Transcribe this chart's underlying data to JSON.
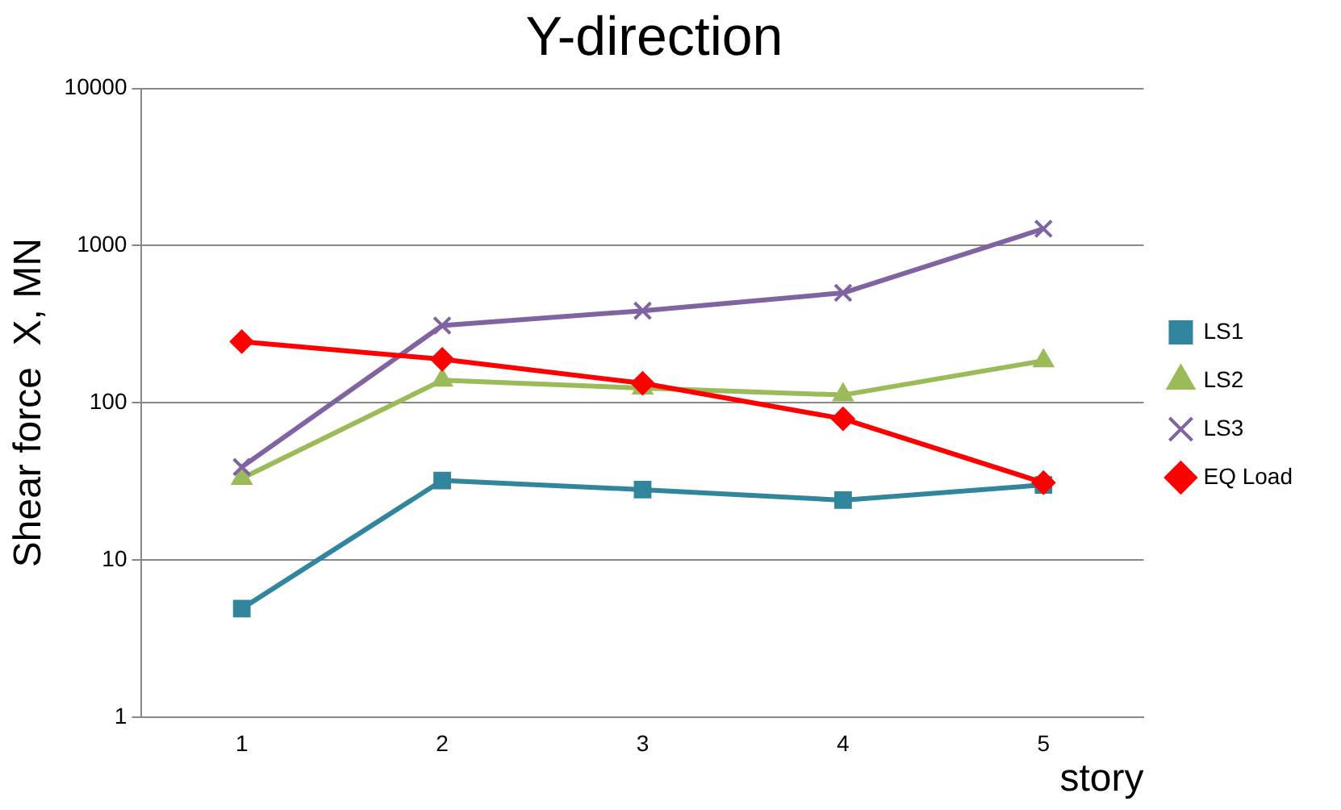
{
  "chart_data": {
    "type": "line",
    "title": "Y-direction",
    "xlabel": "story",
    "ylabel": "Shear force  X, MN",
    "categories": [
      "1",
      "2",
      "3",
      "4",
      "5"
    ],
    "series": [
      {
        "name": "LS1",
        "color": "#31859c",
        "marker": "square",
        "values": [
          4.9,
          32,
          28,
          24,
          30
        ]
      },
      {
        "name": "LS2",
        "color": "#9bbb59",
        "marker": "triangle",
        "values": [
          33,
          139,
          124,
          112,
          185
        ]
      },
      {
        "name": "LS3",
        "color": "#8064a2",
        "marker": "cross",
        "values": [
          39,
          310,
          385,
          500,
          1280
        ]
      },
      {
        "name": "EQ Load",
        "color": "#ff0000",
        "marker": "diamond",
        "values": [
          245,
          189,
          133,
          79,
          31
        ]
      }
    ],
    "log": true,
    "ylim": [
      1,
      10000
    ],
    "yticks": [
      1,
      10,
      100,
      1000,
      10000
    ],
    "grid": "y",
    "legend": "right",
    "line_style": "solid"
  }
}
